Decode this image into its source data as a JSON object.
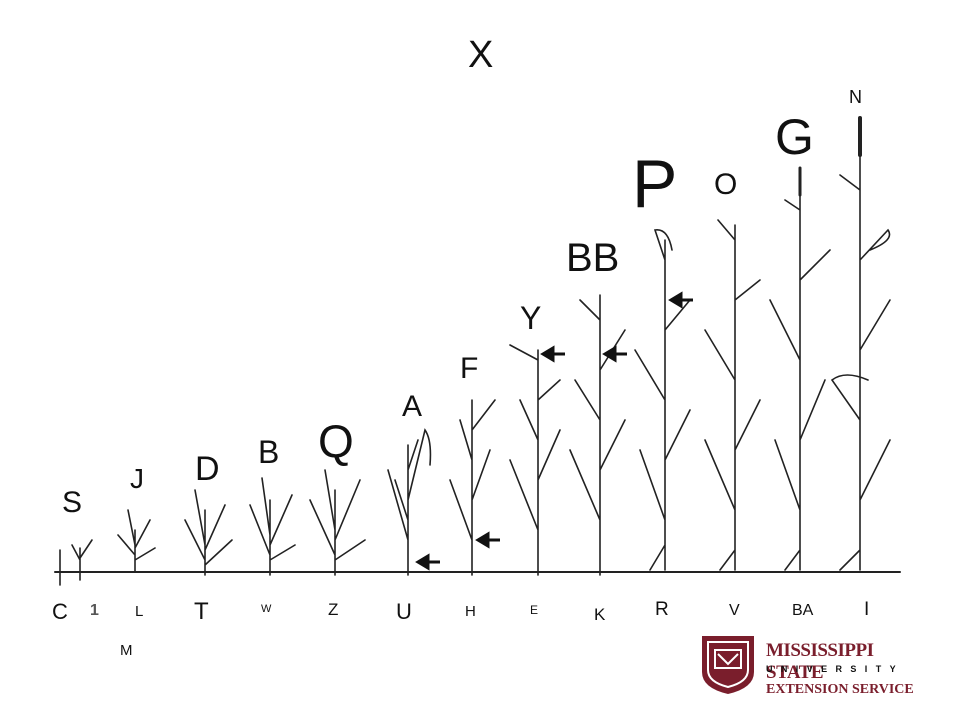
{
  "title": "X",
  "stage_labels": {
    "S": "S",
    "J": "J",
    "D": "D",
    "B": "B",
    "Q": "Q",
    "A": "A",
    "F": "F",
    "Y": "Y",
    "BB": "BB",
    "P": "P",
    "O": "O",
    "G": "G",
    "N": "N"
  },
  "bottom_labels": {
    "C": "C",
    "one": "1",
    "L": "L",
    "M": "M",
    "T": "T",
    "W": "W",
    "Z": "Z",
    "U": "U",
    "H": "H",
    "E": "E",
    "K": "K",
    "R": "R",
    "V": "V",
    "BA": "BA",
    "I": "I"
  },
  "logo": {
    "name": "MISSISSIPPI STATE",
    "subtitle": "UNIVERSITY",
    "service": "EXTENSION SERVICE",
    "color": "#7a1e2c"
  }
}
